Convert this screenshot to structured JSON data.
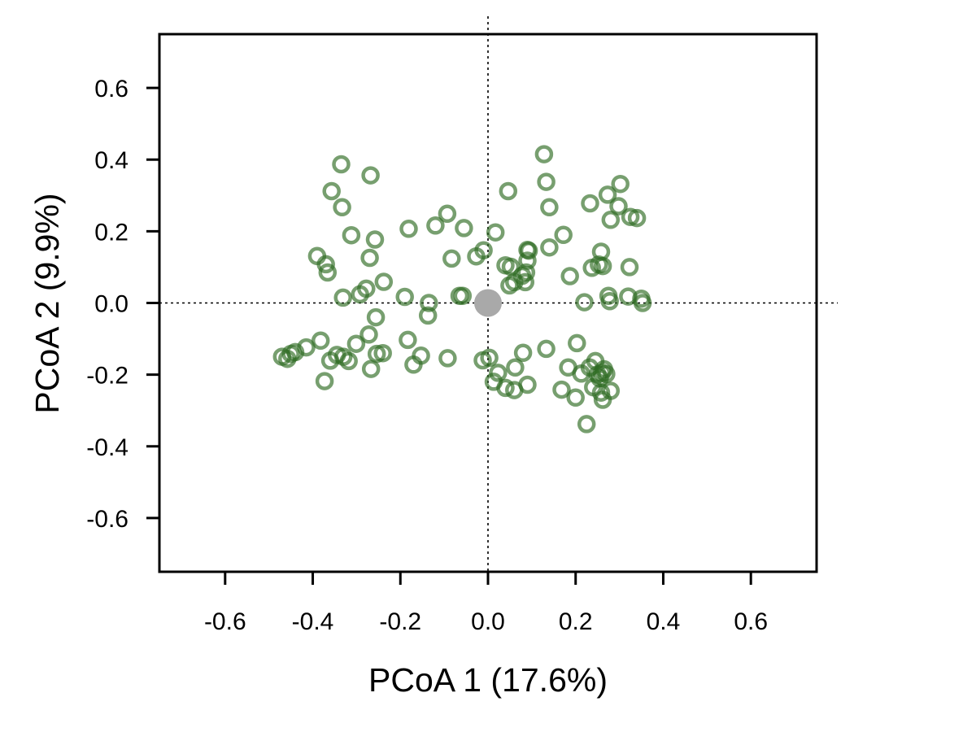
{
  "chart_data": {
    "type": "scatter",
    "title": "",
    "xlabel": "PCoA 1 (17.6%)",
    "ylabel": "PCoA 2 (9.9%)",
    "xlim": [
      -0.75,
      0.75
    ],
    "ylim": [
      -0.75,
      0.75
    ],
    "xticks": [
      "-0.6",
      "-0.4",
      "-0.2",
      "0.0",
      "0.2",
      "0.4",
      "0.6"
    ],
    "yticks": [
      "0.6",
      "0.4",
      "0.2",
      "0.0",
      "-0.2",
      "-0.4",
      "-0.6"
    ],
    "grid": false,
    "reference_lines": [
      {
        "orientation": "vertical",
        "value": 0.0,
        "style": "dotted"
      },
      {
        "orientation": "horizontal",
        "value": 0.0,
        "style": "dotted"
      }
    ],
    "point_color": "#2e6b22",
    "centroid_color": "#a9a9a9",
    "centroid": {
      "x": 0.0,
      "y": 0.0
    },
    "points": [
      {
        "x": -0.335,
        "y": 0.387
      },
      {
        "x": -0.268,
        "y": 0.356
      },
      {
        "x": -0.357,
        "y": 0.312
      },
      {
        "x": -0.333,
        "y": 0.267
      },
      {
        "x": -0.312,
        "y": 0.189
      },
      {
        "x": -0.258,
        "y": 0.177
      },
      {
        "x": -0.39,
        "y": 0.131
      },
      {
        "x": -0.37,
        "y": 0.108
      },
      {
        "x": -0.366,
        "y": 0.085
      },
      {
        "x": -0.27,
        "y": 0.126
      },
      {
        "x": -0.238,
        "y": 0.059
      },
      {
        "x": -0.278,
        "y": 0.04
      },
      {
        "x": -0.292,
        "y": 0.024
      },
      {
        "x": -0.331,
        "y": 0.015
      },
      {
        "x": -0.181,
        "y": 0.207
      },
      {
        "x": -0.12,
        "y": 0.216
      },
      {
        "x": -0.093,
        "y": 0.249
      },
      {
        "x": -0.055,
        "y": 0.209
      },
      {
        "x": -0.083,
        "y": 0.124
      },
      {
        "x": -0.027,
        "y": 0.13
      },
      {
        "x": -0.01,
        "y": 0.147
      },
      {
        "x": 0.017,
        "y": 0.197
      },
      {
        "x": 0.046,
        "y": 0.312
      },
      {
        "x": -0.19,
        "y": 0.017
      },
      {
        "x": -0.135,
        "y": 0.0
      },
      {
        "x": -0.137,
        "y": -0.035
      },
      {
        "x": -0.065,
        "y": 0.02
      },
      {
        "x": -0.058,
        "y": 0.02
      },
      {
        "x": -0.256,
        "y": -0.04
      },
      {
        "x": -0.272,
        "y": -0.088
      },
      {
        "x": -0.301,
        "y": -0.114
      },
      {
        "x": -0.382,
        "y": -0.105
      },
      {
        "x": -0.415,
        "y": -0.124
      },
      {
        "x": -0.44,
        "y": -0.137
      },
      {
        "x": -0.47,
        "y": -0.15
      },
      {
        "x": -0.458,
        "y": -0.156
      },
      {
        "x": -0.45,
        "y": -0.142
      },
      {
        "x": -0.36,
        "y": -0.161
      },
      {
        "x": -0.345,
        "y": -0.145
      },
      {
        "x": -0.33,
        "y": -0.15
      },
      {
        "x": -0.318,
        "y": -0.162
      },
      {
        "x": -0.373,
        "y": -0.218
      },
      {
        "x": -0.267,
        "y": -0.184
      },
      {
        "x": -0.254,
        "y": -0.142
      },
      {
        "x": -0.24,
        "y": -0.14
      },
      {
        "x": -0.183,
        "y": -0.103
      },
      {
        "x": -0.17,
        "y": -0.172
      },
      {
        "x": -0.153,
        "y": -0.147
      },
      {
        "x": -0.092,
        "y": -0.154
      },
      {
        "x": -0.012,
        "y": -0.16
      },
      {
        "x": 0.003,
        "y": -0.153
      },
      {
        "x": 0.013,
        "y": -0.22
      },
      {
        "x": 0.023,
        "y": -0.195
      },
      {
        "x": 0.04,
        "y": -0.237
      },
      {
        "x": 0.06,
        "y": -0.243
      },
      {
        "x": 0.062,
        "y": -0.18
      },
      {
        "x": 0.08,
        "y": -0.139
      },
      {
        "x": 0.09,
        "y": -0.228
      },
      {
        "x": 0.133,
        "y": -0.128
      },
      {
        "x": 0.168,
        "y": -0.242
      },
      {
        "x": 0.183,
        "y": -0.18
      },
      {
        "x": 0.2,
        "y": -0.264
      },
      {
        "x": 0.203,
        "y": -0.112
      },
      {
        "x": 0.213,
        "y": -0.197
      },
      {
        "x": 0.225,
        "y": -0.338
      },
      {
        "x": 0.232,
        "y": -0.18
      },
      {
        "x": 0.245,
        "y": -0.162
      },
      {
        "x": 0.25,
        "y": -0.2
      },
      {
        "x": 0.255,
        "y": -0.21
      },
      {
        "x": 0.26,
        "y": -0.195
      },
      {
        "x": 0.265,
        "y": -0.185
      },
      {
        "x": 0.27,
        "y": -0.198
      },
      {
        "x": 0.262,
        "y": -0.27
      },
      {
        "x": 0.258,
        "y": -0.25
      },
      {
        "x": 0.28,
        "y": -0.245
      },
      {
        "x": 0.24,
        "y": -0.235
      },
      {
        "x": 0.128,
        "y": 0.415
      },
      {
        "x": 0.133,
        "y": 0.338
      },
      {
        "x": 0.14,
        "y": 0.267
      },
      {
        "x": 0.172,
        "y": 0.19
      },
      {
        "x": 0.14,
        "y": 0.155
      },
      {
        "x": 0.09,
        "y": 0.148
      },
      {
        "x": 0.09,
        "y": 0.118
      },
      {
        "x": 0.04,
        "y": 0.105
      },
      {
        "x": 0.052,
        "y": 0.101
      },
      {
        "x": 0.087,
        "y": 0.085
      },
      {
        "x": 0.078,
        "y": 0.076
      },
      {
        "x": 0.06,
        "y": 0.058
      },
      {
        "x": 0.049,
        "y": 0.049
      },
      {
        "x": 0.085,
        "y": 0.058
      },
      {
        "x": 0.093,
        "y": 0.146
      },
      {
        "x": 0.233,
        "y": 0.278
      },
      {
        "x": 0.273,
        "y": 0.302
      },
      {
        "x": 0.302,
        "y": 0.332
      },
      {
        "x": 0.298,
        "y": 0.27
      },
      {
        "x": 0.28,
        "y": 0.232
      },
      {
        "x": 0.325,
        "y": 0.24
      },
      {
        "x": 0.34,
        "y": 0.237
      },
      {
        "x": 0.258,
        "y": 0.143
      },
      {
        "x": 0.253,
        "y": 0.107
      },
      {
        "x": 0.262,
        "y": 0.103
      },
      {
        "x": 0.237,
        "y": 0.098
      },
      {
        "x": 0.323,
        "y": 0.1
      },
      {
        "x": 0.187,
        "y": 0.075
      },
      {
        "x": 0.275,
        "y": 0.02
      },
      {
        "x": 0.278,
        "y": 0.005
      },
      {
        "x": 0.22,
        "y": 0.002
      },
      {
        "x": 0.32,
        "y": 0.018
      },
      {
        "x": 0.35,
        "y": 0.012
      },
      {
        "x": 0.353,
        "y": 0.0
      }
    ]
  }
}
